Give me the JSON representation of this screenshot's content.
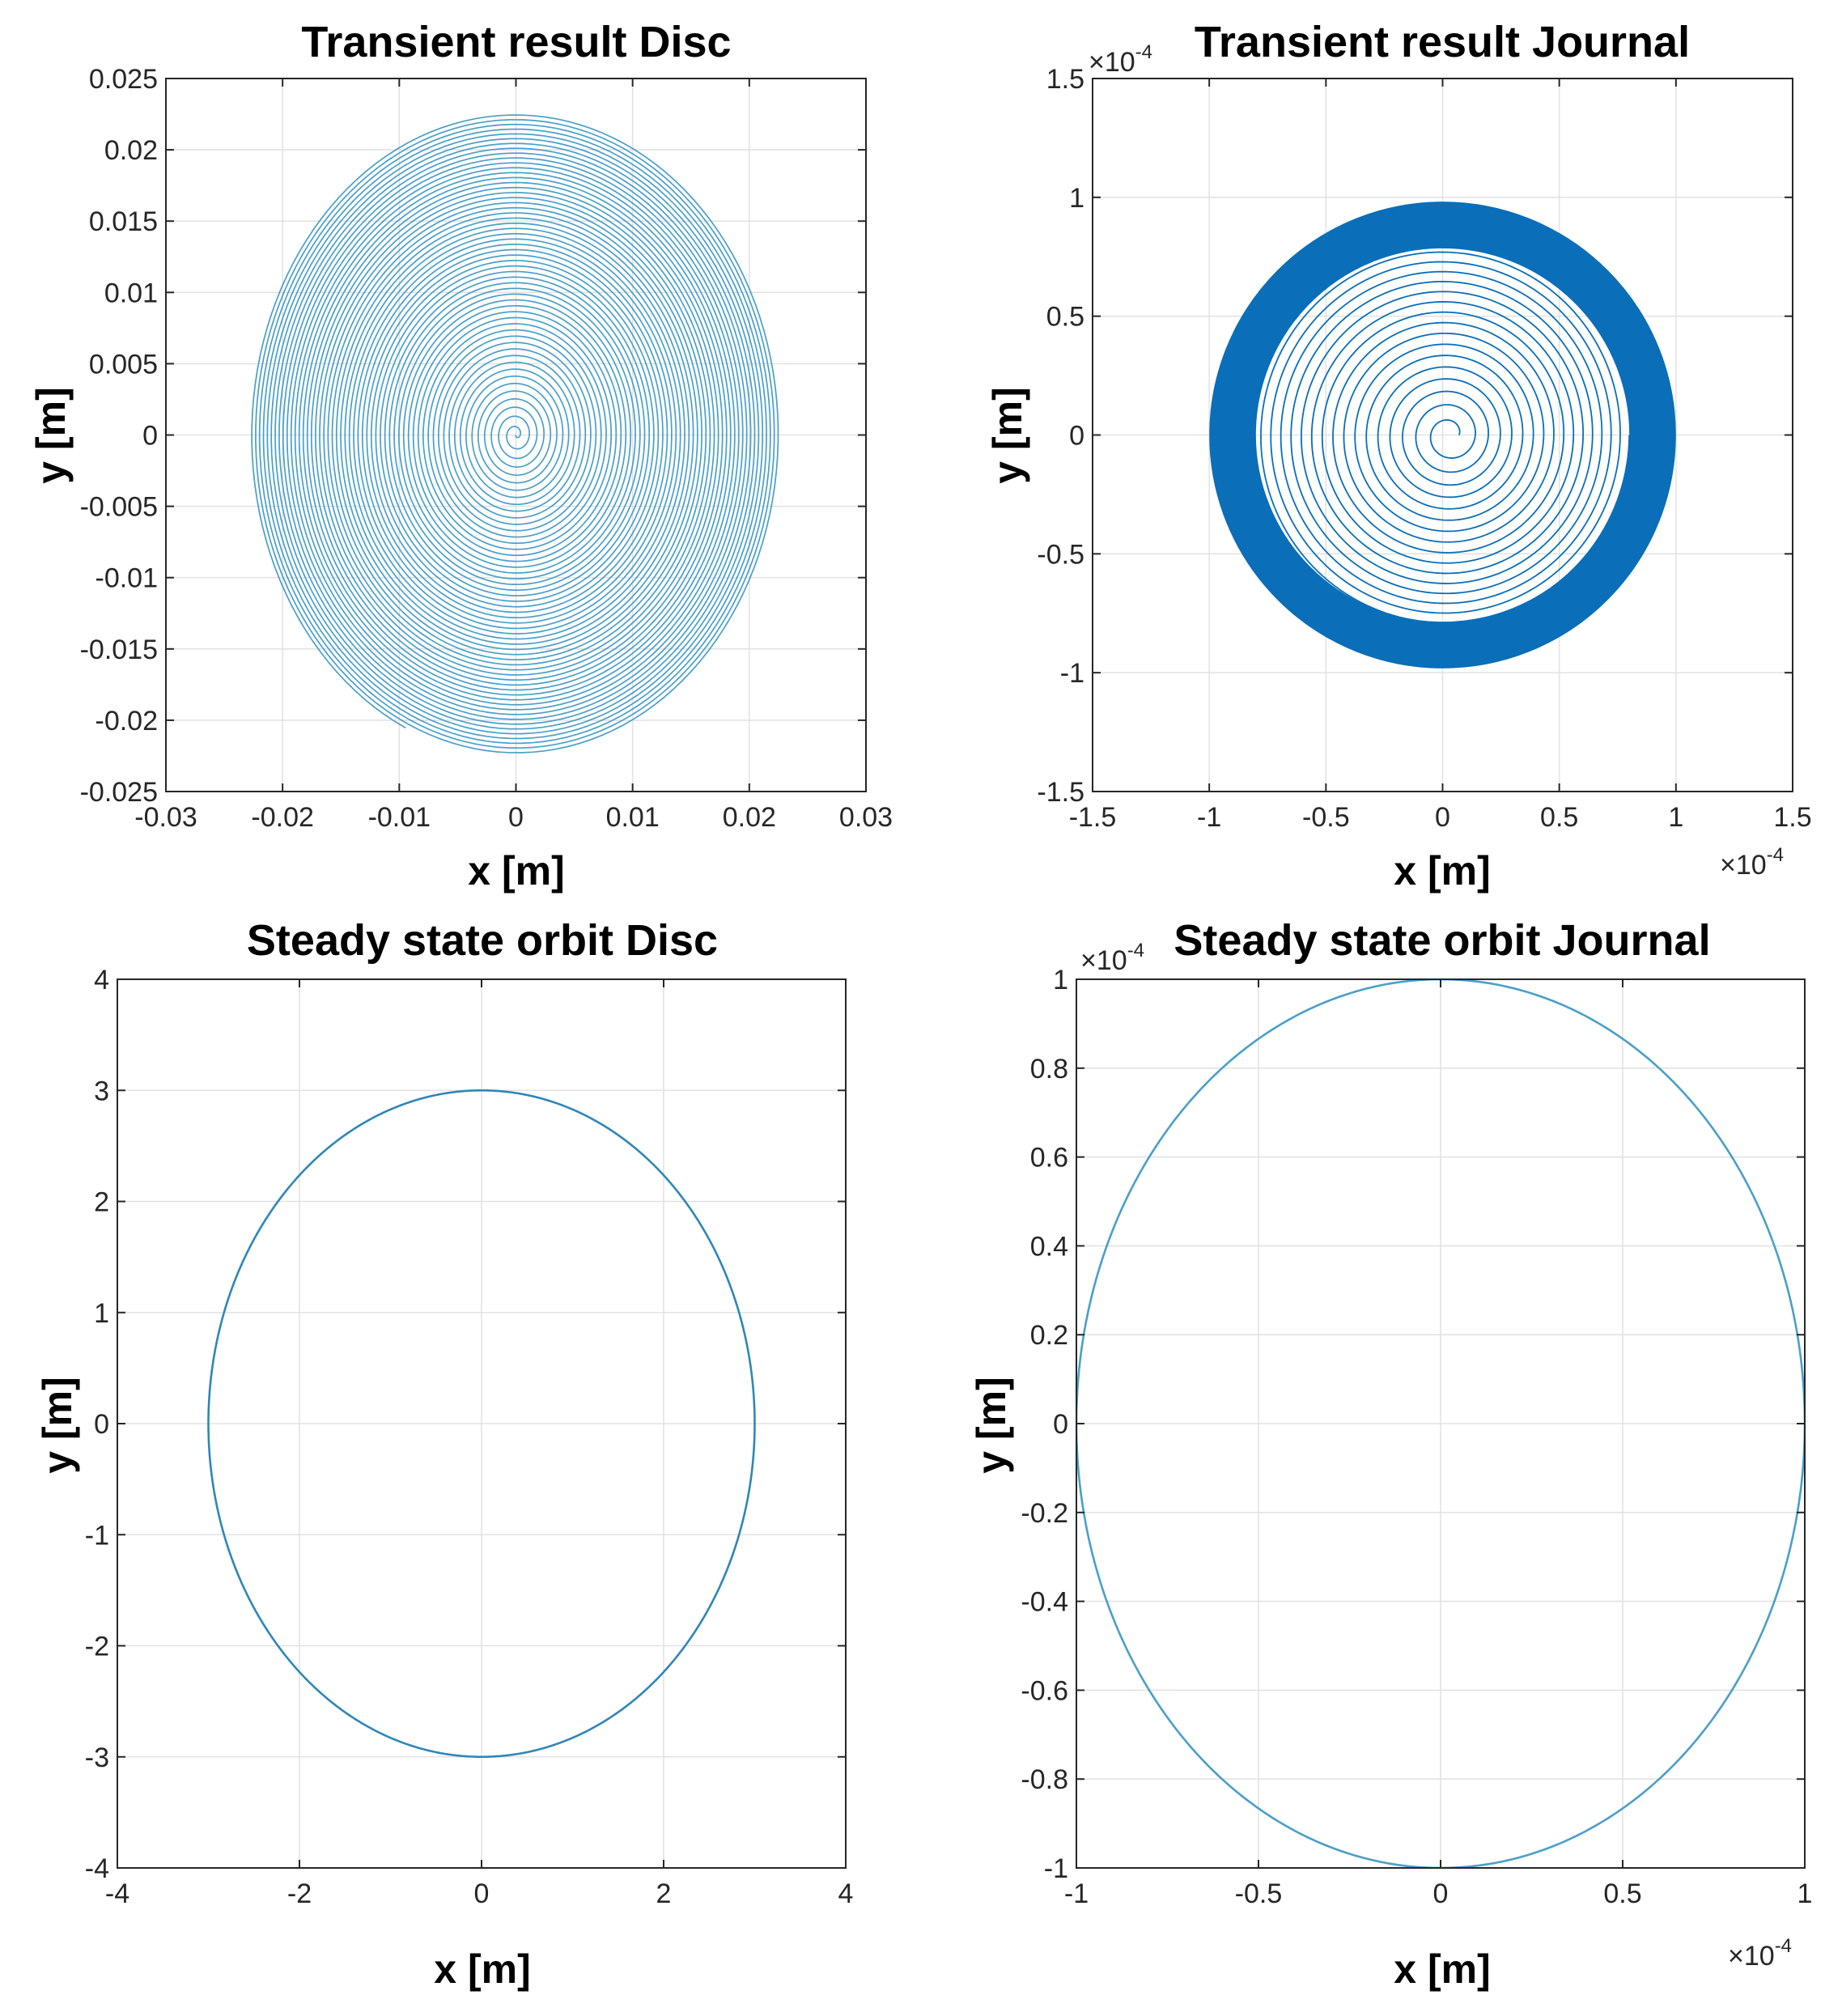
{
  "chart_data": [
    {
      "type": "line",
      "title": "Transient result Disc",
      "xlabel": "x [m]",
      "ylabel": "y [m]",
      "xlim": [
        -0.03,
        0.03
      ],
      "ylim": [
        -0.025,
        0.025
      ],
      "xticks": [
        -0.03,
        -0.02,
        -0.01,
        0,
        0.01,
        0.02,
        0.03
      ],
      "xtick_labels": [
        "-0.03",
        "-0.02",
        "-0.01",
        "0",
        "0.01",
        "0.02",
        "0.03"
      ],
      "yticks": [
        -0.025,
        -0.02,
        -0.015,
        -0.01,
        -0.005,
        0,
        0.005,
        0.01,
        0.015,
        0.02,
        0.025
      ],
      "ytick_labels": [
        "-0.025",
        "-0.02",
        "-0.015",
        "-0.01",
        "-0.005",
        "0",
        "0.005",
        "0.01",
        "0.015",
        "0.02",
        "0.025"
      ],
      "grid": true,
      "series": [
        {
          "name": "disc spiral",
          "kind": "spiral",
          "color": "#4a9fc9",
          "rx_max": 0.0227,
          "ry_max": 0.0227,
          "x_end": 0.0228,
          "turns": 55,
          "start_angle": -2.0
        }
      ]
    },
    {
      "type": "line",
      "title": "Transient result Journal",
      "xlabel": "x [m]",
      "ylabel": "y [m]",
      "xlim": [
        -1.5,
        1.5
      ],
      "ylim": [
        -1.5,
        1.5
      ],
      "xticks": [
        -1.5,
        -1,
        -0.5,
        0,
        0.5,
        1,
        1.5
      ],
      "xtick_labels": [
        "-1.5",
        "-1",
        "-0.5",
        "0",
        "0.5",
        "1",
        "1.5"
      ],
      "yticks": [
        -1.5,
        -1,
        -0.5,
        0,
        0.5,
        1,
        1.5
      ],
      "ytick_labels": [
        "-1.5",
        "-1",
        "-0.5",
        "0",
        "0.5",
        "1",
        "1.5"
      ],
      "x_multiplier": {
        "base": "×10",
        "exponent": "-4"
      },
      "y_multiplier": {
        "base": "×10",
        "exponent": "-4"
      },
      "grid": true,
      "series": [
        {
          "name": "journal spiral",
          "kind": "spiral_journal",
          "color": "#0a6eb8",
          "r_outer": 1.0,
          "r_band_inner": 0.8,
          "inner_turns": 16
        }
      ]
    },
    {
      "type": "line",
      "title": "Steady state orbit Disc",
      "xlabel": "x [m]",
      "ylabel": "y [m]",
      "xlim": [
        -4,
        4
      ],
      "ylim": [
        -4,
        4
      ],
      "xticks": [
        -4,
        -2,
        0,
        2,
        4
      ],
      "xtick_labels": [
        "-4",
        "-2",
        "0",
        "2",
        "4"
      ],
      "yticks": [
        -4,
        -3,
        -2,
        -1,
        0,
        1,
        2,
        3,
        4
      ],
      "ytick_labels": [
        "-4",
        "-3",
        "-2",
        "-1",
        "0",
        "1",
        "2",
        "3",
        "4"
      ],
      "grid": true,
      "series": [
        {
          "name": "disc orbit",
          "kind": "ellipse",
          "color": "#2f86b8",
          "cx": 0,
          "cy": 0,
          "rx": 3,
          "ry": 3
        }
      ]
    },
    {
      "type": "line",
      "title": "Steady state orbit Journal",
      "xlabel": "x [m]",
      "ylabel": "y [m]",
      "xlim": [
        -1,
        1
      ],
      "ylim": [
        -1,
        1
      ],
      "xticks": [
        -1,
        -0.5,
        0,
        0.5,
        1
      ],
      "xtick_labels": [
        "-1",
        "-0.5",
        "0",
        "0.5",
        "1"
      ],
      "yticks": [
        -1,
        -0.8,
        -0.6,
        -0.4,
        -0.2,
        0,
        0.2,
        0.4,
        0.6,
        0.8,
        1
      ],
      "ytick_labels": [
        "-1",
        "-0.8",
        "-0.6",
        "-0.4",
        "-0.2",
        "0",
        "0.2",
        "0.4",
        "0.6",
        "0.8",
        "1"
      ],
      "x_multiplier": {
        "base": "×10",
        "exponent": "-4"
      },
      "y_multiplier": {
        "base": "×10",
        "exponent": "-4"
      },
      "grid": true,
      "series": [
        {
          "name": "journal orbit",
          "kind": "ellipse",
          "color": "#4a9fc9",
          "cx": 0,
          "cy": 0,
          "rx": 1,
          "ry": 1
        }
      ]
    }
  ]
}
